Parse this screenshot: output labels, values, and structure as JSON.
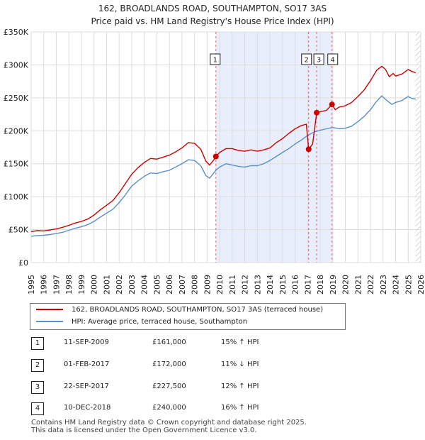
{
  "chart_data": {
    "type": "line",
    "title": "162, BROADLANDS ROAD, SOUTHAMPTON, SO17 3AS",
    "subtitle": "Price paid vs. HM Land Registry's House Price Index (HPI)",
    "xlim": [
      1995,
      2026
    ],
    "ylim": [
      0,
      350000
    ],
    "x_ticks": [
      "1995",
      "1996",
      "1997",
      "1998",
      "1999",
      "2000",
      "2001",
      "2002",
      "2003",
      "2004",
      "2005",
      "2006",
      "2007",
      "2008",
      "2009",
      "2010",
      "2011",
      "2012",
      "2013",
      "2014",
      "2015",
      "2016",
      "2017",
      "2018",
      "2019",
      "2020",
      "2021",
      "2022",
      "2023",
      "2024",
      "2025",
      "2026"
    ],
    "y_ticks": [
      {
        "value": 0,
        "label": "£0"
      },
      {
        "value": 50000,
        "label": "£50K"
      },
      {
        "value": 100000,
        "label": "£100K"
      },
      {
        "value": 150000,
        "label": "£150K"
      },
      {
        "value": 200000,
        "label": "£200K"
      },
      {
        "value": 250000,
        "label": "£250K"
      },
      {
        "value": 300000,
        "label": "£300K"
      },
      {
        "value": 350000,
        "label": "£350K"
      }
    ],
    "colors": {
      "property": "#cc0000",
      "hpi": "#5a8fcc",
      "shade": "#e8eefb",
      "grid": "#dddddd",
      "vline": "#dd6666",
      "hatch": "#bbbbbb"
    },
    "series": [
      {
        "name": "162, BROADLANDS ROAD, SOUTHAMPTON, SO17 3AS (terraced house)",
        "color": "#cc0000",
        "points": [
          [
            1995.0,
            47000
          ],
          [
            1995.5,
            48500
          ],
          [
            1996.0,
            48000
          ],
          [
            1996.5,
            49500
          ],
          [
            1997.0,
            51000
          ],
          [
            1997.5,
            53500
          ],
          [
            1998.0,
            56500
          ],
          [
            1998.5,
            60000
          ],
          [
            1999.0,
            62500
          ],
          [
            1999.5,
            66000
          ],
          [
            2000.0,
            72000
          ],
          [
            2000.5,
            80000
          ],
          [
            2001.0,
            87000
          ],
          [
            2001.5,
            94000
          ],
          [
            2002.0,
            106000
          ],
          [
            2002.5,
            120000
          ],
          [
            2003.0,
            134000
          ],
          [
            2003.5,
            144000
          ],
          [
            2004.0,
            152000
          ],
          [
            2004.5,
            158000
          ],
          [
            2005.0,
            157000
          ],
          [
            2005.5,
            160000
          ],
          [
            2006.0,
            163000
          ],
          [
            2006.5,
            168000
          ],
          [
            2007.0,
            174000
          ],
          [
            2007.5,
            182000
          ],
          [
            2008.0,
            181000
          ],
          [
            2008.5,
            172000
          ],
          [
            2008.9,
            154000
          ],
          [
            2009.2,
            148000
          ],
          [
            2009.5,
            155000
          ],
          [
            2009.7,
            161000
          ],
          [
            2010.0,
            167000
          ],
          [
            2010.5,
            173000
          ],
          [
            2011.0,
            173000
          ],
          [
            2011.5,
            170000
          ],
          [
            2012.0,
            169000
          ],
          [
            2012.5,
            171000
          ],
          [
            2013.0,
            169000
          ],
          [
            2013.5,
            171000
          ],
          [
            2014.0,
            174000
          ],
          [
            2014.5,
            182000
          ],
          [
            2015.0,
            188000
          ],
          [
            2015.5,
            196000
          ],
          [
            2016.0,
            203000
          ],
          [
            2016.5,
            208000
          ],
          [
            2016.9,
            210000
          ],
          [
            2017.08,
            172000
          ],
          [
            2017.4,
            180000
          ],
          [
            2017.72,
            227500
          ],
          [
            2018.0,
            229000
          ],
          [
            2018.5,
            231000
          ],
          [
            2018.94,
            240000
          ],
          [
            2019.2,
            232000
          ],
          [
            2019.5,
            236000
          ],
          [
            2020.0,
            238000
          ],
          [
            2020.5,
            243000
          ],
          [
            2021.0,
            252000
          ],
          [
            2021.5,
            262000
          ],
          [
            2022.0,
            276000
          ],
          [
            2022.5,
            292000
          ],
          [
            2022.9,
            298000
          ],
          [
            2023.2,
            293000
          ],
          [
            2023.5,
            282000
          ],
          [
            2023.8,
            287000
          ],
          [
            2024.0,
            283000
          ],
          [
            2024.5,
            286000
          ],
          [
            2025.0,
            293000
          ],
          [
            2025.3,
            290000
          ],
          [
            2025.6,
            288000
          ]
        ]
      },
      {
        "name": "HPI: Average price, terraced house, Southampton",
        "color": "#5a8fcc",
        "points": [
          [
            1995.0,
            40000
          ],
          [
            1995.5,
            41000
          ],
          [
            1996.0,
            41500
          ],
          [
            1996.5,
            42500
          ],
          [
            1997.0,
            44000
          ],
          [
            1997.5,
            46000
          ],
          [
            1998.0,
            49000
          ],
          [
            1998.5,
            52000
          ],
          [
            1999.0,
            54500
          ],
          [
            1999.5,
            57500
          ],
          [
            2000.0,
            62500
          ],
          [
            2000.5,
            69000
          ],
          [
            2001.0,
            75000
          ],
          [
            2001.5,
            81000
          ],
          [
            2002.0,
            91000
          ],
          [
            2002.5,
            103000
          ],
          [
            2003.0,
            116000
          ],
          [
            2003.5,
            124000
          ],
          [
            2004.0,
            131000
          ],
          [
            2004.5,
            136000
          ],
          [
            2005.0,
            135000
          ],
          [
            2005.5,
            138000
          ],
          [
            2006.0,
            140000
          ],
          [
            2006.5,
            145000
          ],
          [
            2007.0,
            150000
          ],
          [
            2007.5,
            156000
          ],
          [
            2008.0,
            155000
          ],
          [
            2008.5,
            147000
          ],
          [
            2008.9,
            132000
          ],
          [
            2009.2,
            128000
          ],
          [
            2009.7,
            140000
          ],
          [
            2010.0,
            145000
          ],
          [
            2010.5,
            150000
          ],
          [
            2011.0,
            148000
          ],
          [
            2011.5,
            146000
          ],
          [
            2012.0,
            145000
          ],
          [
            2012.5,
            147000
          ],
          [
            2013.0,
            147000
          ],
          [
            2013.5,
            150000
          ],
          [
            2014.0,
            155000
          ],
          [
            2014.5,
            161000
          ],
          [
            2015.0,
            167000
          ],
          [
            2015.5,
            173000
          ],
          [
            2016.0,
            180000
          ],
          [
            2016.5,
            186000
          ],
          [
            2017.0,
            193000
          ],
          [
            2017.5,
            198000
          ],
          [
            2018.0,
            201000
          ],
          [
            2018.5,
            203000
          ],
          [
            2019.0,
            205000
          ],
          [
            2019.5,
            203000
          ],
          [
            2020.0,
            204000
          ],
          [
            2020.5,
            207000
          ],
          [
            2021.0,
            214000
          ],
          [
            2021.5,
            222000
          ],
          [
            2022.0,
            232000
          ],
          [
            2022.5,
            245000
          ],
          [
            2022.9,
            253000
          ],
          [
            2023.3,
            246000
          ],
          [
            2023.7,
            240000
          ],
          [
            2024.0,
            243000
          ],
          [
            2024.5,
            246000
          ],
          [
            2025.0,
            252000
          ],
          [
            2025.3,
            249000
          ],
          [
            2025.6,
            248000
          ]
        ]
      }
    ],
    "shade_range": [
      2009.7,
      2018.94
    ],
    "hatch_from": 2025.58,
    "transactions": [
      {
        "num": "1",
        "date": "11-SEP-2009",
        "price": "£161,000",
        "hpi": "15% ↑ HPI",
        "x": 2009.7,
        "value": 161000
      },
      {
        "num": "2",
        "date": "01-FEB-2017",
        "price": "£172,000",
        "hpi": "11% ↓ HPI",
        "x": 2017.08,
        "value": 172000
      },
      {
        "num": "3",
        "date": "22-SEP-2017",
        "price": "£227,500",
        "hpi": "12% ↑ HPI",
        "x": 2017.72,
        "value": 227500
      },
      {
        "num": "4",
        "date": "10-DEC-2018",
        "price": "£240,000",
        "hpi": "16% ↑ HPI",
        "x": 2018.94,
        "value": 240000
      }
    ]
  },
  "footer": {
    "line1": "Contains HM Land Registry data © Crown copyright and database right 2025.",
    "line2": "This data is licensed under the Open Government Licence v3.0."
  }
}
